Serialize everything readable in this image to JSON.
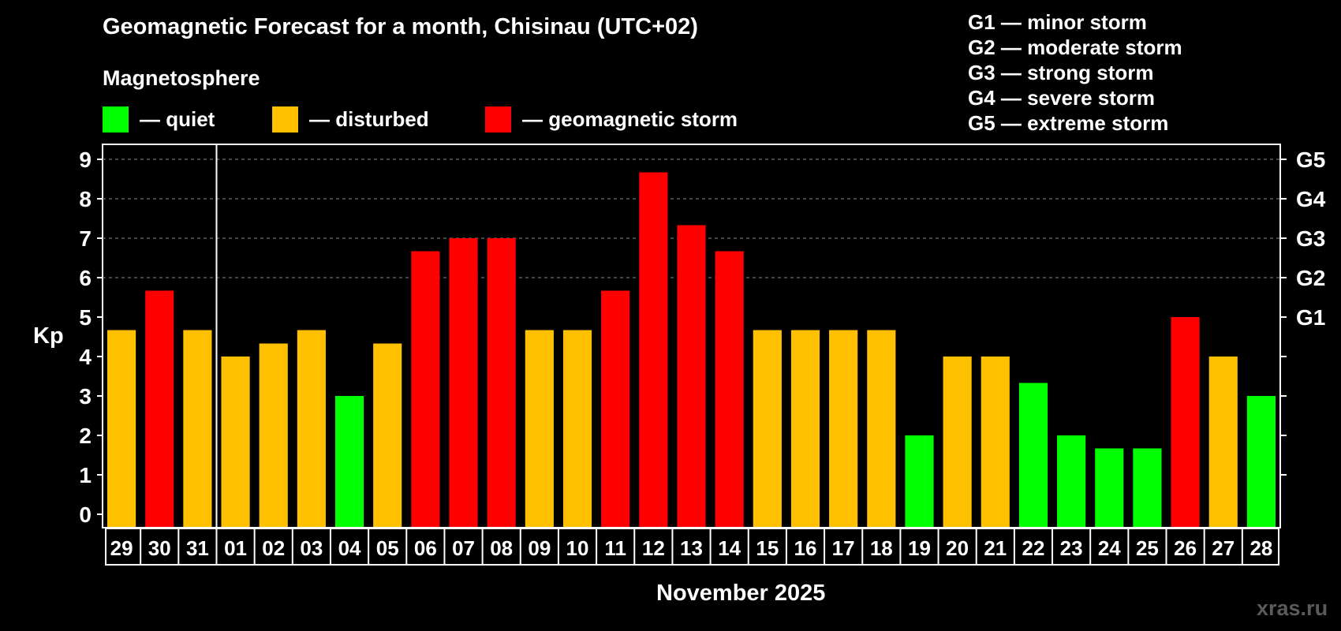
{
  "title": "Geomagnetic Forecast for a month, Chisinau (UTC+02)",
  "subtitle": "Magnetosphere",
  "legend": [
    {
      "label": "— quiet",
      "color": "#00ff00"
    },
    {
      "label": "— disturbed",
      "color": "#ffc000"
    },
    {
      "label": "— geomagnetic storm",
      "color": "#ff0000"
    }
  ],
  "storm_scale": [
    "G1 — minor storm",
    "G2 — moderate storm",
    "G3 — strong storm",
    "G4 — severe storm",
    "G5 — extreme storm"
  ],
  "watermark": "xras.ru",
  "chart_data": {
    "type": "bar",
    "title": "Geomagnetic Forecast for a month, Chisinau (UTC+02)",
    "ylabel": "Kp",
    "xlabel": "November 2025",
    "ylim": [
      0,
      9
    ],
    "yticks": [
      0,
      1,
      2,
      3,
      4,
      5,
      6,
      7,
      8,
      9
    ],
    "right_axis": [
      {
        "value": 5,
        "label": "G1"
      },
      {
        "value": 6,
        "label": "G2"
      },
      {
        "value": 7,
        "label": "G3"
      },
      {
        "value": 8,
        "label": "G4"
      },
      {
        "value": 9,
        "label": "G5"
      }
    ],
    "grid": "dashed horizontal at 6, 7, 8, 9",
    "month_separator_after": "31",
    "categories": [
      "29",
      "30",
      "31",
      "01",
      "02",
      "03",
      "04",
      "05",
      "06",
      "07",
      "08",
      "09",
      "10",
      "11",
      "12",
      "13",
      "14",
      "15",
      "16",
      "17",
      "18",
      "19",
      "20",
      "21",
      "22",
      "23",
      "24",
      "25",
      "26",
      "27",
      "28"
    ],
    "values": [
      4.67,
      5.67,
      4.67,
      4.0,
      4.33,
      4.67,
      3.0,
      4.33,
      6.67,
      7.0,
      7.0,
      4.67,
      4.67,
      5.67,
      8.67,
      7.33,
      6.67,
      4.67,
      4.67,
      4.67,
      4.67,
      2.0,
      4.0,
      4.0,
      3.33,
      2.0,
      1.67,
      1.67,
      5.0,
      4.0,
      3.0
    ],
    "levels": [
      "disturbed",
      "storm",
      "disturbed",
      "disturbed",
      "disturbed",
      "disturbed",
      "quiet",
      "disturbed",
      "storm",
      "storm",
      "storm",
      "disturbed",
      "disturbed",
      "storm",
      "storm",
      "storm",
      "storm",
      "disturbed",
      "disturbed",
      "disturbed",
      "disturbed",
      "quiet",
      "disturbed",
      "disturbed",
      "quiet",
      "quiet",
      "quiet",
      "quiet",
      "storm",
      "disturbed",
      "quiet"
    ],
    "level_colors": {
      "quiet": "#00ff00",
      "disturbed": "#ffc000",
      "storm": "#ff0000"
    }
  }
}
